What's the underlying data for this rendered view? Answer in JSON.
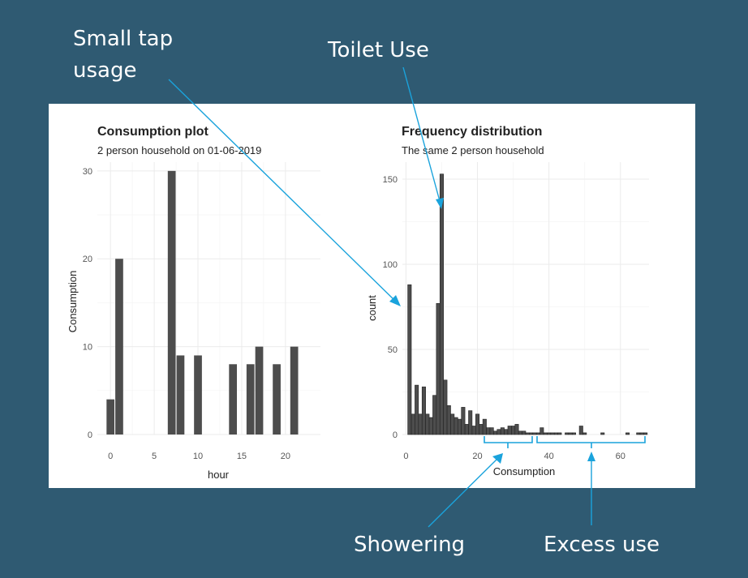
{
  "annotations": {
    "small_tap": [
      "Small tap",
      "usage"
    ],
    "toilet": "Toilet Use",
    "showering": "Showering",
    "excess": "Excess use"
  },
  "colors": {
    "background": "#2f5a72",
    "bar": "#4d4d4d",
    "annotation": "#1aa3dc"
  },
  "chart_data": [
    {
      "type": "bar",
      "title": "Consumption plot",
      "subtitle": "2 person household on 01-06-2019",
      "xlabel": "hour",
      "ylabel": "Consumption",
      "xlim": [
        -1.5,
        24
      ],
      "ylim": [
        0,
        31
      ],
      "xticks": [
        0,
        5,
        10,
        15,
        20
      ],
      "yticks": [
        0,
        10,
        20,
        30
      ],
      "x": [
        0,
        1,
        7,
        8,
        10,
        14,
        16,
        17,
        19,
        21
      ],
      "values": [
        4,
        20,
        30,
        9,
        9,
        8,
        8,
        10,
        8,
        10
      ],
      "grid": true
    },
    {
      "type": "bar",
      "title": "Frequency distribution",
      "subtitle": "The same 2 person household",
      "xlabel": "Consumption",
      "ylabel": "count",
      "xlim": [
        -1,
        68
      ],
      "ylim": [
        0,
        160
      ],
      "xticks": [
        0,
        20,
        40,
        60
      ],
      "yticks": [
        0,
        50,
        100,
        150
      ],
      "binwidth": 1,
      "x": [
        1,
        2,
        3,
        4,
        5,
        6,
        7,
        8,
        9,
        10,
        11,
        12,
        13,
        14,
        15,
        16,
        17,
        18,
        19,
        20,
        21,
        22,
        23,
        24,
        25,
        26,
        27,
        28,
        29,
        30,
        31,
        32,
        33,
        34,
        35,
        36,
        37,
        38,
        39,
        40,
        41,
        42,
        43,
        44,
        45,
        46,
        47,
        48,
        49,
        50,
        51,
        52,
        53,
        54,
        55,
        56,
        57,
        58,
        59,
        60,
        61,
        62,
        63,
        64,
        65,
        66,
        67
      ],
      "values": [
        88,
        12,
        29,
        12,
        28,
        12,
        10,
        23,
        77,
        153,
        32,
        17,
        12,
        10,
        9,
        16,
        6,
        14,
        5,
        12,
        6,
        9,
        4,
        4,
        2,
        3,
        4,
        3,
        5,
        5,
        6,
        2,
        2,
        1,
        1,
        1,
        1,
        4,
        1,
        1,
        1,
        1,
        1,
        0,
        1,
        1,
        1,
        0,
        5,
        1,
        0,
        0,
        0,
        0,
        1,
        0,
        0,
        0,
        0,
        0,
        0,
        1,
        0,
        0,
        1,
        1,
        1
      ],
      "grid": true
    }
  ]
}
